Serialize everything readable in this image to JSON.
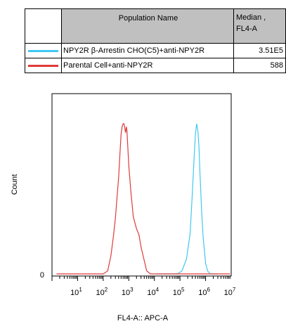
{
  "legend": {
    "header_name": "Population Name",
    "header_median_line1": "Median ,",
    "header_median_line2": "FL4-A",
    "rows": [
      {
        "name": "NPY2R β-Arrestin CHO(C5)+anti-NPY2R",
        "median": "3.51E5",
        "color": "#40c8f0"
      },
      {
        "name": "Parental Cell+anti-NPY2R",
        "median": "588",
        "color": "#e03a3a"
      }
    ]
  },
  "chart_data": {
    "type": "line",
    "xlabel": "FL4-A:: APC-A",
    "ylabel": "Count",
    "x_scale": "log",
    "xlim": [
      1,
      10000000
    ],
    "ylim": [
      0,
      1.2
    ],
    "y_tick_labels": [
      "0"
    ],
    "x_tick_labels": [
      "10^1",
      "10^2",
      "10^3",
      "10^4",
      "10^5",
      "10^6",
      "10^7"
    ],
    "series": [
      {
        "name": "NPY2R β-Arrestin CHO(C5)+anti-NPY2R",
        "color": "#40c8f0",
        "x": [
          12000,
          80000,
          120000,
          180000,
          250000,
          300000,
          350000,
          400000,
          450000,
          500000,
          550000,
          600000,
          700000,
          800000,
          1000000,
          1200000,
          1500000,
          2000000,
          3000000
        ],
        "y": [
          0,
          0,
          0.02,
          0.1,
          0.27,
          0.52,
          0.75,
          0.93,
          1.0,
          0.95,
          0.85,
          0.68,
          0.42,
          0.25,
          0.07,
          0.02,
          0,
          0,
          0
        ]
      },
      {
        "name": "Parental Cell+anti-NPY2R",
        "color": "#e03a3a",
        "x": [
          1.5,
          100,
          150,
          200,
          250,
          300,
          350,
          400,
          450,
          500,
          550,
          600,
          650,
          700,
          750,
          800,
          850,
          900,
          1000,
          1200,
          1500,
          2000,
          2500,
          3000,
          4000,
          5000,
          7000,
          10000,
          9000000
        ],
        "y": [
          0,
          0,
          0.02,
          0.12,
          0.25,
          0.37,
          0.52,
          0.64,
          0.8,
          0.93,
          0.98,
          1.0,
          1.0,
          0.97,
          0.94,
          0.98,
          0.95,
          0.87,
          0.72,
          0.55,
          0.38,
          0.3,
          0.26,
          0.18,
          0.09,
          0.02,
          0,
          0,
          0
        ]
      }
    ]
  }
}
